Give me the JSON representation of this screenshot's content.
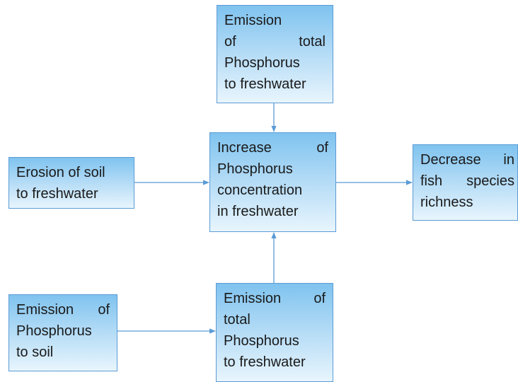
{
  "nodes": [
    {
      "lines": [
        "Emission",
        "of total",
        "Phosphorus",
        "to freshwater"
      ]
    },
    {
      "lines": [
        "Increase of",
        "Phosphorus",
        "concentration",
        "in freshwater"
      ]
    },
    {
      "lines": [
        "Erosion of soil",
        "to freshwater"
      ]
    },
    {
      "lines": [
        "Decrease in",
        "fish species",
        "richness"
      ]
    },
    {
      "lines": [
        "Emission of",
        "Phosphorus",
        "to soil"
      ]
    },
    {
      "lines": [
        "Emission of",
        "total",
        "Phosphorus",
        "to freshwater"
      ]
    }
  ]
}
